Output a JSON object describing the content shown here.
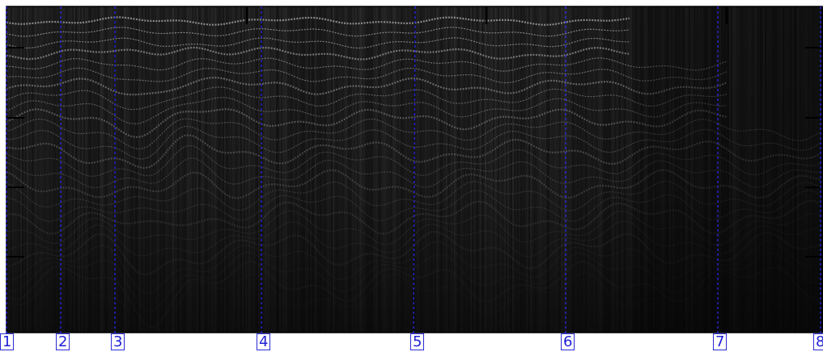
{
  "image": {
    "subject": "radargram",
    "colors": {
      "background": "#ffffff",
      "frame": "#000000",
      "marker_line": "#2323d9",
      "marker_label_text": "#1f1fd6",
      "marker_label_border": "#2a2ad8"
    }
  },
  "markers": [
    {
      "label": "1"
    },
    {
      "label": "2"
    },
    {
      "label": "3"
    },
    {
      "label": "4"
    },
    {
      "label": "5"
    },
    {
      "label": "6"
    },
    {
      "label": "7"
    },
    {
      "label": "8"
    }
  ]
}
